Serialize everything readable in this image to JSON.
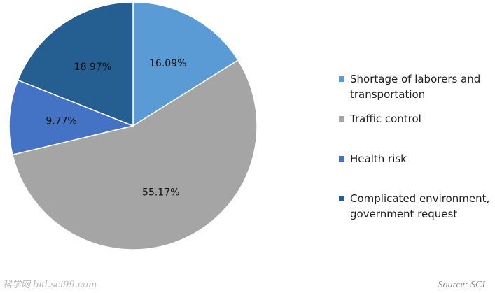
{
  "chart_data": {
    "type": "pie",
    "title": "",
    "categories": [
      "Shortage of laborers and transportation",
      "Traffic control",
      "Health risk",
      "Complicated environment, government request"
    ],
    "values": [
      16.09,
      55.17,
      9.77,
      18.97
    ],
    "value_labels": [
      "16.09%",
      "55.17%",
      "9.77%",
      "18.97%"
    ],
    "colors": [
      "#5b9bd5",
      "#a5a5a5",
      "#4472c4",
      "#255e91"
    ],
    "start_angle": "12 o'clock",
    "direction": "clockwise",
    "legend_placement": "right"
  },
  "legend": {
    "items": [
      {
        "label": "Shortage of laborers and transportation",
        "color": "#5b9bd5"
      },
      {
        "label": "Traffic control",
        "color": "#a5a5a5"
      },
      {
        "label": "Health risk",
        "color": "#4472c4"
      },
      {
        "label": "Complicated environment, government request",
        "color": "#255e91"
      }
    ]
  },
  "watermark": {
    "text": "科学网 bid.sci99.com"
  },
  "source": {
    "text": "Source: SCI"
  }
}
